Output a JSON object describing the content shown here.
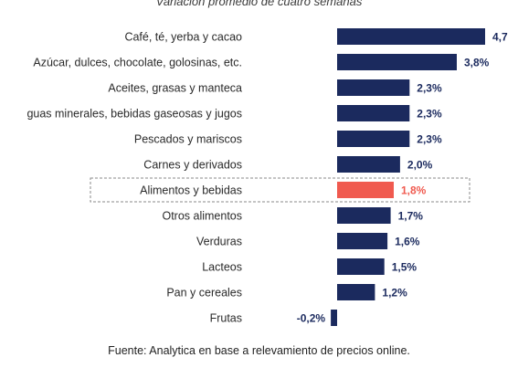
{
  "chart_data": {
    "type": "bar",
    "orientation": "horizontal",
    "subtitle": "Variación promedio de cuatro semanas",
    "categories": [
      "Café, té, yerba y cacao",
      "Azúcar, dulces, chocolate, golosinas, etc.",
      "Aceites, grasas y manteca",
      "guas minerales, bebidas gaseosas y jugos",
      "Pescados y mariscos",
      "Carnes y derivados",
      "Alimentos y bebidas",
      "Otros alimentos",
      "Verduras",
      "Lacteos",
      "Pan y cereales",
      "Frutas"
    ],
    "values": [
      4.7,
      3.8,
      2.3,
      2.3,
      2.3,
      2.0,
      1.8,
      1.7,
      1.6,
      1.5,
      1.2,
      -0.2
    ],
    "value_labels": [
      "4,7",
      "3,8%",
      "2,3%",
      "2,3%",
      "2,3%",
      "2,0%",
      "1,8%",
      "1,7%",
      "1,6%",
      "1,5%",
      "1,2%",
      "-0,2%"
    ],
    "highlight_index": 6,
    "colors": {
      "bar": "#1b2a5e",
      "highlight": "#f05a4f",
      "label": "#1b2a5e",
      "highlight_label": "#f05a4f"
    },
    "grid": false,
    "legend": "none"
  },
  "footer": {
    "source": "Fuente: Analytica en base a relevamiento de precios online."
  }
}
